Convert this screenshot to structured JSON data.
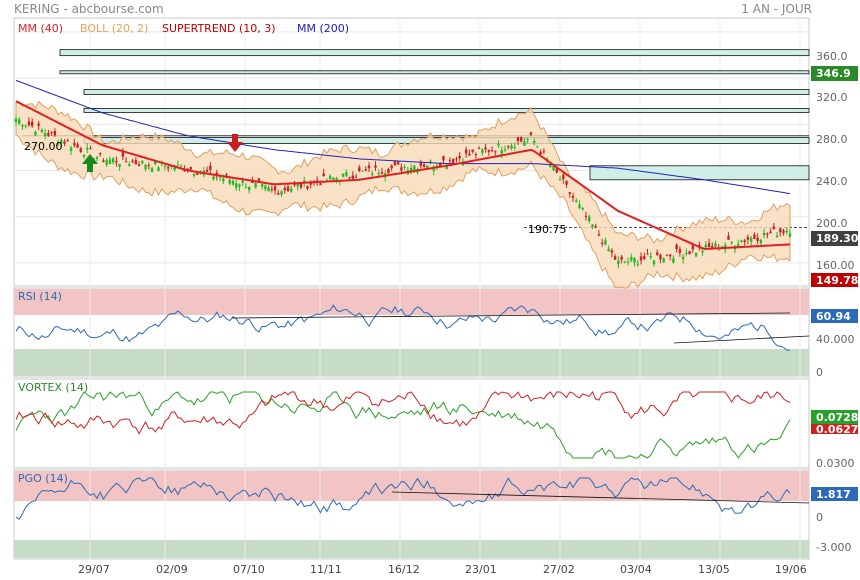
{
  "header": {
    "symbol": "KERING - abcbourse.com",
    "period": "1 AN - JOUR"
  },
  "main_legend": [
    {
      "label": "MM (40)",
      "color": "#e02020"
    },
    {
      "label": "BOLL (20, 2)",
      "color": "#e8a05a"
    },
    {
      "label": "SUPERTREND (10, 3)",
      "color": "#c00000"
    },
    {
      "label": "MM (200)",
      "color": "#2020c0"
    }
  ],
  "price_axis": {
    "ticks": [
      "360.0",
      "320.0",
      "280.0",
      "240.0",
      "200.0",
      "160.00"
    ],
    "min": 140,
    "max": 372
  },
  "price_markers": {
    "high": {
      "value": "346.9",
      "color": "#2a8a2a"
    },
    "last": {
      "value": "189.30",
      "color": "#404040"
    },
    "low": {
      "value": "149.78",
      "color": "#c00000"
    }
  },
  "annotations": {
    "level_270": "270.00",
    "level_190": "190.75"
  },
  "x_labels": [
    "29/07",
    "02/09",
    "07/10",
    "11/11",
    "16/12",
    "23/01",
    "27/02",
    "03/04",
    "13/05",
    "19/06"
  ],
  "rsi": {
    "title": "RSI (14)",
    "last": "60.94",
    "ticks": [
      "40.000",
      "0"
    ]
  },
  "vortex": {
    "title": "VORTEX (14)",
    "last_plus": "0.0728",
    "last_minus": "0.0627",
    "ticks": [
      "0.0300"
    ]
  },
  "pgo": {
    "title": "PGO (14)",
    "last": "1.817",
    "ticks": [
      "0",
      "-3.000"
    ]
  },
  "colors": {
    "up_candle": "#22bb22",
    "down_candle": "#cc2222",
    "rsi_line": "#2a6ab8",
    "vortex_plus": "#2aa02a",
    "vortex_minus": "#cc2222",
    "pgo_line": "#2a6ab8",
    "overbought_zone": "#f2c4c4",
    "oversold_zone": "#c6dcc6"
  },
  "chart_data": {
    "type": "line",
    "title": "KERING - abcbourse.com",
    "x": [
      "29/07",
      "02/09",
      "07/10",
      "11/11",
      "16/12",
      "23/01",
      "27/02",
      "03/04",
      "13/05",
      "19/06"
    ],
    "close_approx": [
      285,
      250,
      242,
      222,
      238,
      248,
      268,
      160,
      172,
      189.3
    ],
    "series": [
      {
        "name": "MM (40)",
        "values": [
          300,
          262,
          240,
          228,
          232,
          244,
          258,
          205,
          172,
          176
        ]
      },
      {
        "name": "MM (200)",
        "values": [
          318,
          290,
          270,
          258,
          250,
          246,
          246,
          242,
          232,
          220
        ]
      }
    ],
    "resistance_levels": [
      342,
      325,
      308,
      292,
      266,
      238
    ],
    "marked_levels": [
      270.0,
      190.75
    ],
    "ylim": [
      140,
      372
    ],
    "indicators": {
      "RSI (14)": {
        "last": 60.94
      },
      "VORTEX (14)": {
        "last_plus": 0.0728,
        "last_minus": 0.0627
      },
      "PGO (14)": {
        "last": 1.817
      }
    }
  }
}
